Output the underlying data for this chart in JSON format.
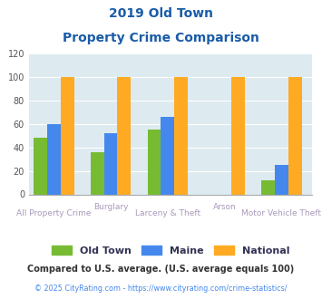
{
  "title_line1": "2019 Old Town",
  "title_line2": "Property Crime Comparison",
  "categories": [
    "All Property Crime",
    "Burglary",
    "Larceny & Theft",
    "Arson",
    "Motor Vehicle Theft"
  ],
  "groups": [
    "Old Town",
    "Maine",
    "National"
  ],
  "values": [
    [
      48,
      36,
      55,
      0,
      12
    ],
    [
      60,
      52,
      66,
      0,
      25
    ],
    [
      100,
      100,
      100,
      100,
      100
    ]
  ],
  "colors": [
    "#77bb33",
    "#4488ee",
    "#ffaa22"
  ],
  "ylim": [
    0,
    120
  ],
  "yticks": [
    0,
    20,
    40,
    60,
    80,
    100,
    120
  ],
  "bg_color": "#ddeaf0",
  "title_color": "#1a5ca8",
  "footnote1": "Compared to U.S. average. (U.S. average equals 100)",
  "footnote2": "© 2025 CityRating.com - https://www.cityrating.com/crime-statistics/",
  "footnote1_color": "#333333",
  "footnote2_color": "#4488ee",
  "label_color": "#aa99bb",
  "grid_color": "#ffffff",
  "legend_label_color": "#333355"
}
